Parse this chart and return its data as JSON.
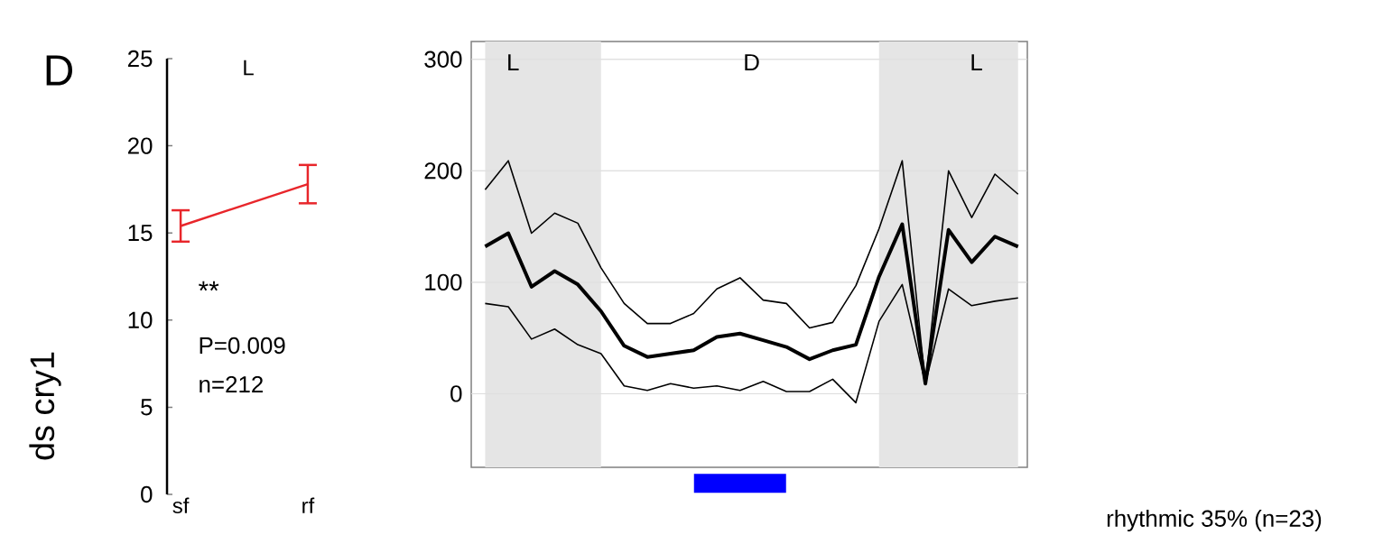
{
  "chart_data": [
    {
      "type": "line",
      "title": "D",
      "ylabel": "ds cry1",
      "categories": [
        "sf",
        "rf"
      ],
      "values": [
        15.4,
        17.8
      ],
      "errors": [
        [
          14.5,
          16.3
        ],
        [
          16.7,
          18.9
        ]
      ],
      "color": "#e8262b",
      "ylim": [
        0,
        25
      ],
      "yticks": [
        0,
        5,
        10,
        15,
        20,
        25
      ],
      "annotations": [
        "L",
        "**",
        "P=0.009",
        "n=212"
      ]
    },
    {
      "type": "line",
      "categories": [
        null,
        null,
        null,
        null,
        null,
        null,
        null,
        null,
        null,
        null,
        null,
        null,
        null,
        null,
        null,
        null,
        null,
        null,
        null,
        null,
        null,
        null,
        null,
        null
      ],
      "ylim": [
        -66,
        316
      ],
      "yticks": [
        0,
        100,
        200,
        300
      ],
      "grid": "y",
      "series": [
        {
          "color": "#000000",
          "values": [
            132,
            144,
            96,
            110,
            98,
            74,
            43,
            33,
            36,
            39,
            51,
            54,
            48,
            42,
            31,
            39,
            44,
            105,
            152,
            9,
            147,
            118,
            141,
            132
          ]
        },
        {
          "color": "#000000",
          "values": [
            183,
            209,
            144,
            162,
            153,
            113,
            81,
            63,
            63,
            72,
            94,
            104,
            84,
            81,
            59,
            64,
            97,
            148,
            209,
            9,
            200,
            158,
            197,
            179
          ]
        },
        {
          "color": "#000000",
          "values": [
            81,
            78,
            49,
            58,
            44,
            36,
            7,
            3,
            9,
            5,
            7,
            3,
            11,
            2,
            2,
            13,
            -8,
            65,
            98,
            9,
            94,
            79,
            83,
            86
          ]
        }
      ],
      "annotations": [
        "L",
        "D",
        "L"
      ]
    },
    {
      "type": "other",
      "annotations": [
        "rhythmic 35% (n=23)"
      ]
    }
  ]
}
